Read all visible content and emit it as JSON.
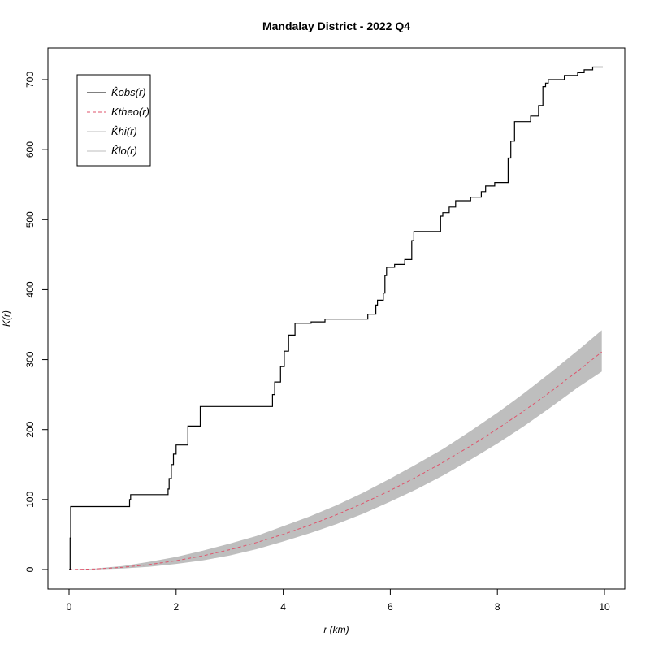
{
  "chart_data": {
    "type": "line",
    "title": "Mandalay District - 2022 Q4",
    "xlabel": "r (km)",
    "ylabel": "K(r)",
    "xlim": [
      0,
      10
    ],
    "ylim": [
      0,
      720
    ],
    "x_ticks": [
      0,
      2,
      4,
      6,
      8,
      10
    ],
    "y_ticks": [
      0,
      100,
      200,
      300,
      400,
      500,
      600,
      700
    ],
    "legend_position": "top-left",
    "grid": false,
    "colors": {
      "obs": "#000000",
      "theo": "#df536b",
      "envelope": "#bebebe"
    },
    "legend": [
      {
        "key": "obs",
        "label": "K̂obs(r)"
      },
      {
        "key": "theo",
        "label": "Ktheo(r)"
      },
      {
        "key": "hi",
        "label": "K̂hi(r)"
      },
      {
        "key": "lo",
        "label": "K̂lo(r)"
      }
    ],
    "series": [
      {
        "name": "obs",
        "style": "step",
        "x": [
          0,
          0.02,
          0.03,
          0.05,
          1.13,
          1.15,
          1.85,
          1.87,
          1.91,
          1.95,
          2.0,
          2.22,
          2.45,
          3.8,
          3.84,
          3.95,
          4.02,
          4.1,
          4.22,
          4.52,
          4.78,
          5.58,
          5.73,
          5.76,
          5.87,
          5.9,
          5.93,
          6.08,
          6.27,
          6.4,
          6.44,
          6.94,
          6.98,
          7.1,
          7.22,
          7.5,
          7.7,
          7.78,
          7.95,
          8.2,
          8.25,
          8.32,
          8.62,
          8.77,
          8.85,
          8.9,
          8.95,
          9.25,
          9.5,
          9.62,
          9.78,
          9.97
        ],
        "y": [
          0,
          45,
          90,
          90,
          100,
          107,
          115,
          130,
          150,
          165,
          178,
          205,
          233,
          250,
          268,
          290,
          312,
          335,
          352,
          354,
          358,
          365,
          378,
          385,
          395,
          420,
          432,
          436,
          443,
          470,
          483,
          505,
          510,
          518,
          527,
          532,
          540,
          548,
          553,
          588,
          612,
          640,
          648,
          663,
          690,
          695,
          700,
          706,
          710,
          714,
          718,
          718
        ]
      },
      {
        "name": "theo",
        "x": [
          0,
          0.5,
          1,
          1.5,
          2,
          2.5,
          3,
          3.5,
          4,
          4.5,
          5,
          5.5,
          6,
          6.5,
          7,
          7.5,
          8,
          8.5,
          9,
          9.5,
          9.95
        ],
        "y": [
          0,
          0.8,
          3.1,
          7.1,
          12.6,
          19.6,
          28.3,
          38.5,
          50.3,
          63.6,
          78.5,
          95.0,
          113.1,
          132.7,
          153.9,
          176.7,
          201.1,
          227.0,
          254.5,
          283.5,
          311.0
        ]
      },
      {
        "name": "hi",
        "x": [
          0,
          0.5,
          1,
          1.5,
          2,
          2.5,
          3,
          3.5,
          4,
          4.5,
          5,
          5.5,
          6,
          6.5,
          7,
          7.5,
          8,
          8.5,
          9,
          9.5,
          9.95
        ],
        "y": [
          0,
          1.5,
          5,
          11,
          18,
          27,
          37,
          48,
          62,
          76,
          92,
          110,
          130,
          151,
          173,
          198,
          224,
          252,
          282,
          313,
          342
        ]
      },
      {
        "name": "lo",
        "x": [
          0,
          0.5,
          1,
          1.5,
          2,
          2.5,
          3,
          3.5,
          4,
          4.5,
          5,
          5.5,
          6,
          6.5,
          7,
          7.5,
          8,
          8.5,
          9,
          9.5,
          9.95
        ],
        "y": [
          0,
          0.2,
          1.5,
          4,
          8,
          13,
          20,
          29,
          40,
          52,
          65,
          80,
          97,
          115,
          135,
          157,
          180,
          205,
          232,
          260,
          283
        ]
      }
    ]
  }
}
